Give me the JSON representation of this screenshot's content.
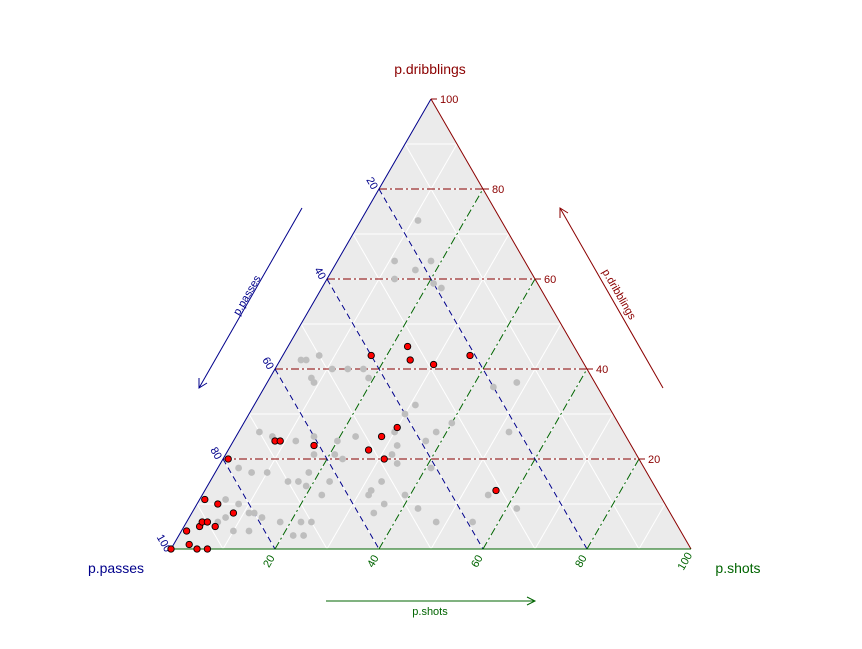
{
  "chart_data": {
    "type": "scatter",
    "subtype": "ternary",
    "axes": {
      "top": {
        "label": "p.dribblings",
        "color": "#8B0000"
      },
      "left": {
        "label": "p.passes",
        "color": "#00008B"
      },
      "right": {
        "label": "p.shots",
        "color": "#006400"
      }
    },
    "arrow_labels": {
      "left": "p.passes",
      "right": "p.dribblings",
      "bottom": "p.shots"
    },
    "ticks": {
      "passes": [
        "20",
        "40",
        "60",
        "80",
        "100"
      ],
      "dribblings": [
        "20",
        "40",
        "60",
        "80",
        "100"
      ],
      "shots": [
        "20",
        "40",
        "60",
        "80",
        "100"
      ]
    },
    "grid": true,
    "background_color": "#EBEBEB",
    "series": [
      {
        "color": "#BEBEBE",
        "points": [
          [
            54,
            42,
            4
          ],
          [
            53,
            42,
            5
          ],
          [
            50,
            43,
            7
          ],
          [
            54,
            38,
            8
          ],
          [
            54,
            37,
            9
          ],
          [
            49,
            40,
            11
          ],
          [
            46,
            40,
            14
          ],
          [
            43,
            40,
            17
          ],
          [
            70,
            26,
            4
          ],
          [
            68,
            25,
            7
          ],
          [
            64,
            24,
            12
          ],
          [
            60,
            25,
            15
          ],
          [
            56,
            24,
            20
          ],
          [
            52,
            25,
            23
          ],
          [
            44,
            26,
            30
          ],
          [
            61,
            23,
            16
          ],
          [
            58,
            21,
            21
          ],
          [
            57,
            20,
            23
          ],
          [
            51,
            22,
            27
          ],
          [
            47,
            21,
            32
          ],
          [
            36,
            26,
            38
          ],
          [
            32,
            28,
            40
          ],
          [
            22,
            26,
            52
          ],
          [
            78,
            18,
            4
          ],
          [
            76,
            17,
            7
          ],
          [
            73,
            17,
            10
          ],
          [
            70,
            15,
            15
          ],
          [
            67,
            14,
            19
          ],
          [
            62,
            15,
            23
          ],
          [
            55,
            13,
            32
          ],
          [
            84,
            11,
            5
          ],
          [
            82,
            10,
            8
          ],
          [
            81,
            8,
            11
          ],
          [
            80,
            8,
            12
          ],
          [
            79,
            7,
            14
          ],
          [
            76,
            6,
            18
          ],
          [
            72,
            6,
            22
          ],
          [
            70,
            6,
            24
          ],
          [
            57,
            8,
            35
          ],
          [
            54,
            10,
            36
          ],
          [
            49,
            12,
            39
          ],
          [
            48,
            9,
            43
          ],
          [
            46,
            6,
            48
          ],
          [
            39,
            6,
            55
          ],
          [
            29,
            9,
            62
          ],
          [
            33,
            12,
            55
          ],
          [
            47,
            19,
            34
          ],
          [
            45,
            23,
            32
          ],
          [
            86,
            7,
            7
          ],
          [
            88,
            6,
            6
          ],
          [
            86,
            4,
            10
          ],
          [
            83,
            4,
            13
          ],
          [
            75,
            3,
            22
          ],
          [
            73,
            3,
            24
          ],
          [
            68,
            15,
            17
          ],
          [
            65,
            17,
            18
          ],
          [
            40,
            30,
            30
          ],
          [
            37,
            32,
            31
          ],
          [
            43,
            38,
            19
          ],
          [
            62,
            21,
            17
          ],
          [
            15,
            37,
            48
          ],
          [
            20,
            36,
            44
          ],
          [
            39,
            24,
            37
          ],
          [
            41,
            18,
            41
          ],
          [
            56,
            12,
            32
          ],
          [
            52,
            15,
            33
          ],
          [
            19,
            58,
            23
          ],
          [
            18,
            64,
            18
          ],
          [
            25,
            64,
            11
          ],
          [
            27,
            60,
            13
          ],
          [
            20,
            59,
            21
          ],
          [
            22,
            62,
            16
          ],
          [
            16,
            73,
            11
          ],
          [
            65,
            12,
            23
          ]
        ]
      },
      {
        "color": "#FF0000",
        "points": [
          [
            100,
            0,
            0
          ],
          [
            96,
            1,
            3
          ],
          [
            95,
            0,
            5
          ],
          [
            95,
            4,
            1
          ],
          [
            93,
            0,
            7
          ],
          [
            92,
            5,
            3
          ],
          [
            91,
            6,
            3
          ],
          [
            90,
            6,
            4
          ],
          [
            89,
            5,
            6
          ],
          [
            88,
            11,
            1
          ],
          [
            84,
            8,
            8
          ],
          [
            86,
            10,
            4
          ],
          [
            79,
            20,
            1
          ],
          [
            68,
            24,
            8
          ],
          [
            67,
            24,
            9
          ],
          [
            61,
            23,
            16
          ],
          [
            51,
            22,
            27
          ],
          [
            49,
            20,
            31
          ],
          [
            47,
            25,
            28
          ],
          [
            43,
            27,
            30
          ],
          [
            40,
            43,
            17
          ],
          [
            33,
            42,
            25
          ],
          [
            32,
            45,
            23
          ],
          [
            29,
            41,
            30
          ],
          [
            21,
            43,
            36
          ],
          [
            31,
            13,
            56
          ]
        ]
      }
    ]
  }
}
